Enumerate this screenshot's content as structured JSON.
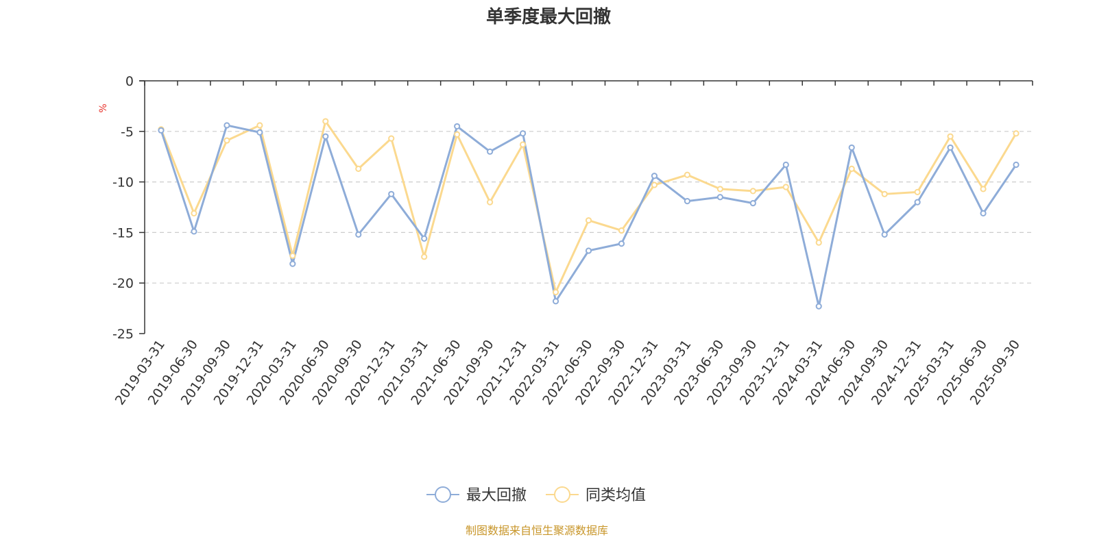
{
  "chart_data": {
    "type": "line",
    "title": "单季度最大回撤",
    "ylabel": "%",
    "xlabel": "",
    "ylim": [
      -25,
      0
    ],
    "yticks": [
      0,
      -5,
      -10,
      -15,
      -20,
      -25
    ],
    "grid": true,
    "legend_position": "bottom-center",
    "categories": [
      "2019-03-31",
      "2019-06-30",
      "2019-09-30",
      "2019-12-31",
      "2020-03-31",
      "2020-06-30",
      "2020-09-30",
      "2020-12-31",
      "2021-03-31",
      "2021-06-30",
      "2021-09-30",
      "2021-12-31",
      "2022-03-31",
      "2022-06-30",
      "2022-09-30",
      "2022-12-31",
      "2023-03-31",
      "2023-06-30",
      "2023-09-30",
      "2023-12-31",
      "2024-03-31",
      "2024-06-30",
      "2024-09-30",
      "2024-12-31",
      "2025-03-31",
      "2025-06-30",
      "2025-09-30"
    ],
    "series": [
      {
        "name": "最大回撤",
        "color": "#8eacd8",
        "values": [
          -4.9,
          -14.9,
          -4.4,
          -5.1,
          -18.1,
          -5.5,
          -15.2,
          -11.2,
          -15.6,
          -4.5,
          -7.0,
          -5.2,
          -21.8,
          -16.8,
          -16.1,
          -9.4,
          -11.9,
          -11.5,
          -12.1,
          -8.3,
          -22.3,
          -6.6,
          -15.2,
          -12.0,
          -6.6,
          -13.1,
          -8.3
        ]
      },
      {
        "name": "同类均值",
        "color": "#fbd98f",
        "values": [
          -4.8,
          -13.1,
          -5.9,
          -4.4,
          -17.3,
          -4.0,
          -8.7,
          -5.7,
          -17.4,
          -5.3,
          -12.0,
          -6.3,
          -20.9,
          -13.8,
          -14.8,
          -10.3,
          -9.3,
          -10.7,
          -10.9,
          -10.5,
          -16.0,
          -8.7,
          -11.2,
          -11.0,
          -5.5,
          -10.7,
          -5.2
        ]
      }
    ]
  },
  "unit_color": "#e8322b",
  "source": {
    "text": "制图数据来自恒生聚源数据库",
    "color": "#c8962a"
  }
}
